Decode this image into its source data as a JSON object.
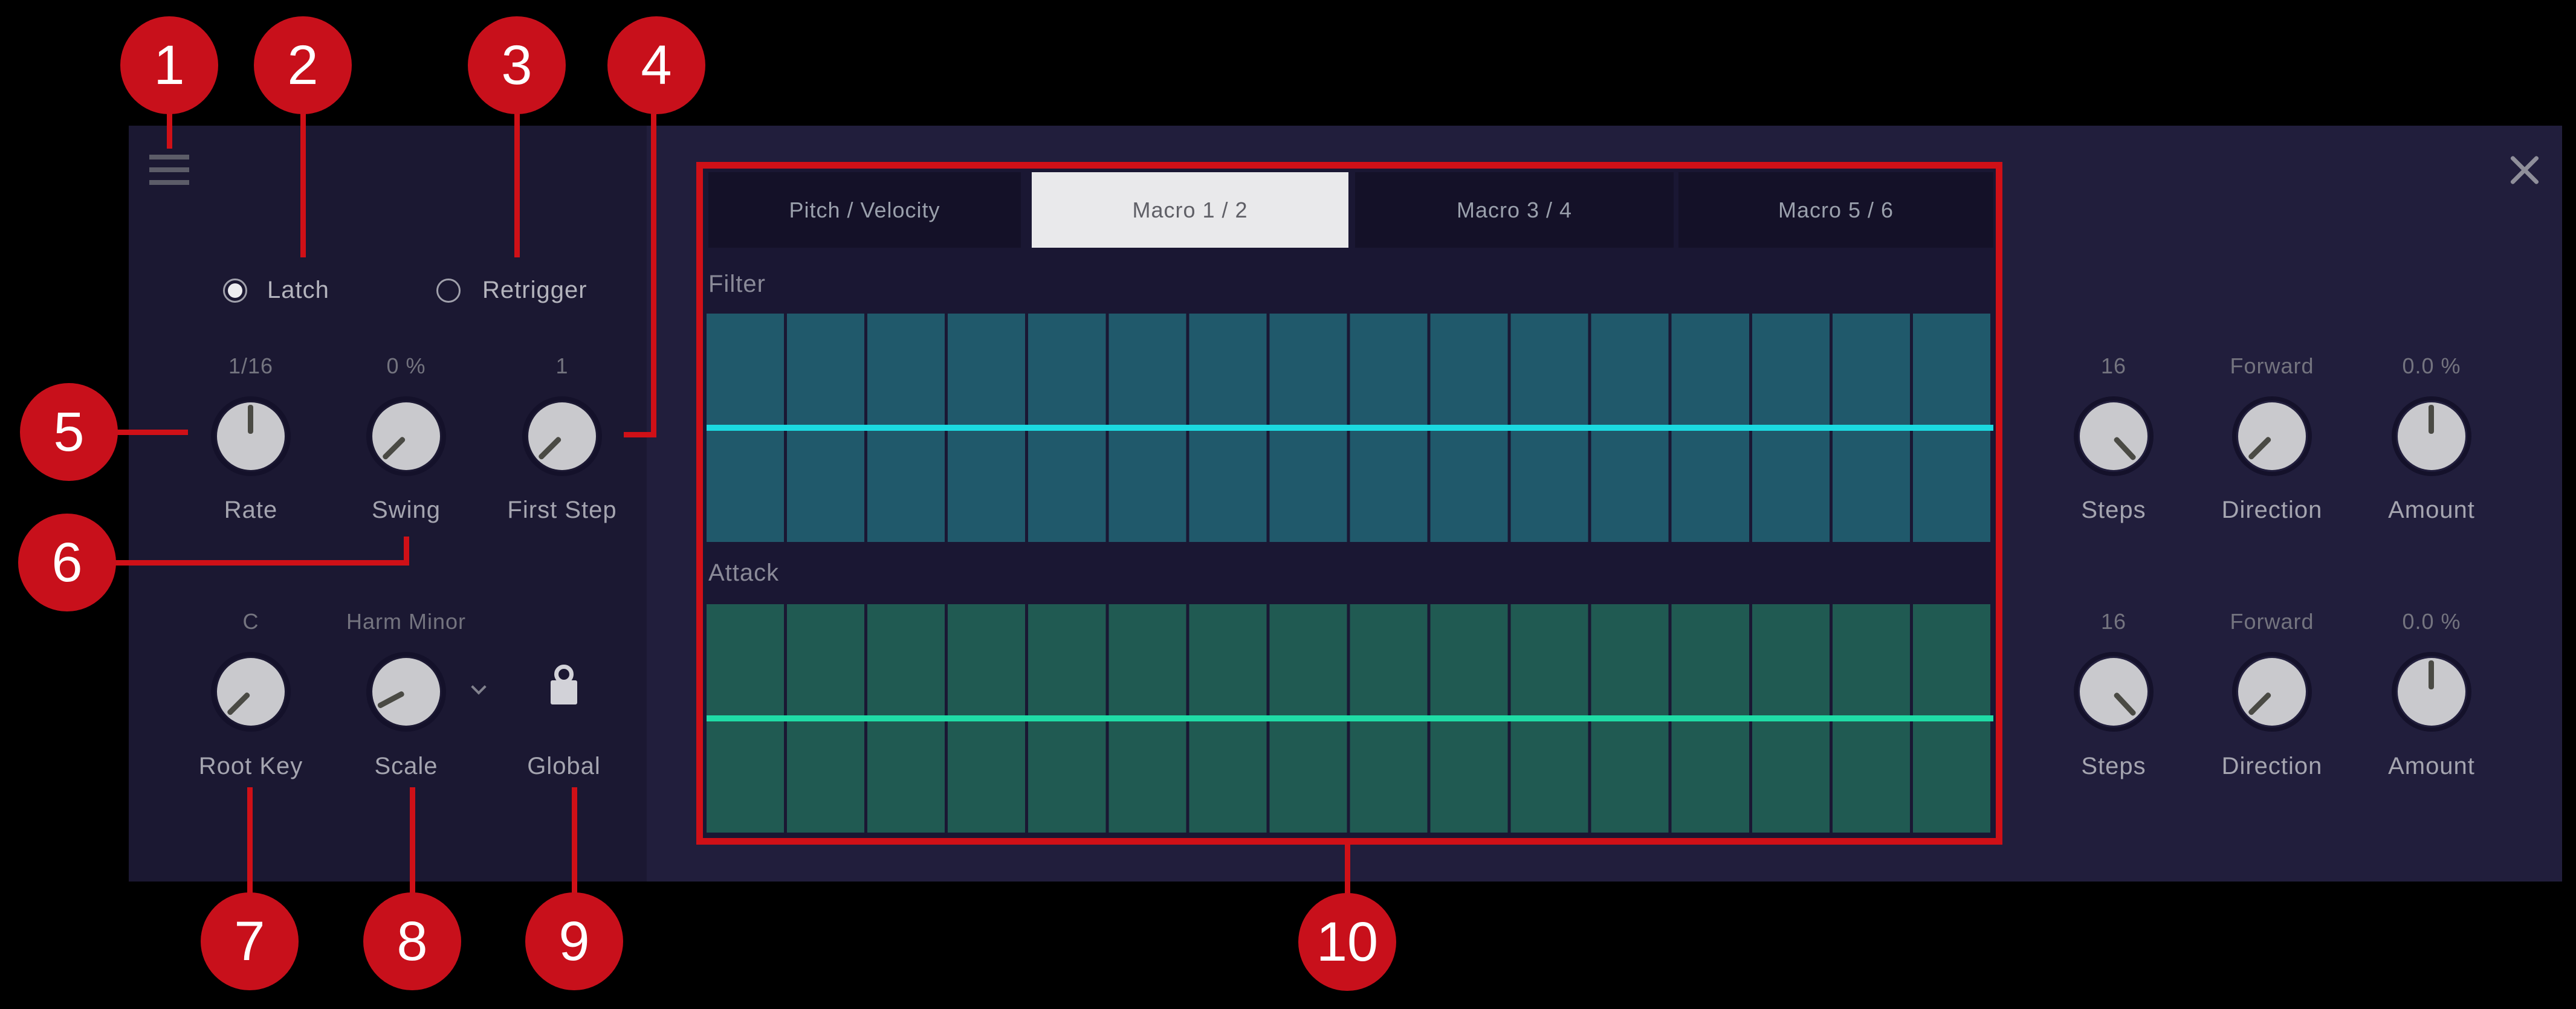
{
  "panel": {
    "toggles": {
      "latch": {
        "label": "Latch",
        "selected": true
      },
      "retrigger": {
        "label": "Retrigger",
        "selected": false
      }
    },
    "knobs": {
      "rate": {
        "value": "1/16",
        "label": "Rate",
        "angle": 0
      },
      "swing": {
        "value": "0 %",
        "label": "Swing",
        "angle": -135
      },
      "first_step": {
        "value": "1",
        "label": "First Step",
        "angle": -135
      },
      "root_key": {
        "value": "C",
        "label": "Root Key",
        "angle": -135
      },
      "scale": {
        "value": "Harm Minor",
        "label": "Scale",
        "angle": -118
      },
      "global": {
        "label": "Global",
        "icon": "lock"
      }
    },
    "tabs": [
      {
        "label": "Pitch / Velocity",
        "active": false
      },
      {
        "label": "Macro 1 / 2",
        "active": true
      },
      {
        "label": "Macro 3 / 4",
        "active": false
      },
      {
        "label": "Macro 5 / 6",
        "active": false
      }
    ],
    "lanes": {
      "filter": {
        "label": "Filter",
        "steps": 16,
        "value_percent": 50,
        "bar_color": "#20596b",
        "gap_color": "#1a1733",
        "line_color": "#1bd9e0"
      },
      "attack": {
        "label": "Attack",
        "steps": 16,
        "value_percent": 50,
        "bar_color": "#205a52",
        "gap_color": "#1a1733",
        "line_color": "#1fdca6"
      }
    },
    "mod_rows": [
      {
        "steps": {
          "value": "16",
          "label": "Steps",
          "angle": 137
        },
        "direction": {
          "value": "Forward",
          "label": "Direction",
          "angle": -135
        },
        "amount": {
          "value": "0.0 %",
          "label": "Amount",
          "angle": 0
        }
      },
      {
        "steps": {
          "value": "16",
          "label": "Steps",
          "angle": 137
        },
        "direction": {
          "value": "Forward",
          "label": "Direction",
          "angle": -135
        },
        "amount": {
          "value": "0.0 %",
          "label": "Amount",
          "angle": 0
        }
      }
    ],
    "icons": {
      "menu": "hamburger-icon",
      "close": "close-icon",
      "lock": "lock-icon",
      "scale_dropdown": "chevron-down-icon"
    },
    "accent_color": "#cf1017"
  },
  "callouts": {
    "items": [
      {
        "n": "1"
      },
      {
        "n": "2"
      },
      {
        "n": "3"
      },
      {
        "n": "4"
      },
      {
        "n": "5"
      },
      {
        "n": "6"
      },
      {
        "n": "7"
      },
      {
        "n": "8"
      },
      {
        "n": "9"
      },
      {
        "n": "10"
      }
    ]
  }
}
